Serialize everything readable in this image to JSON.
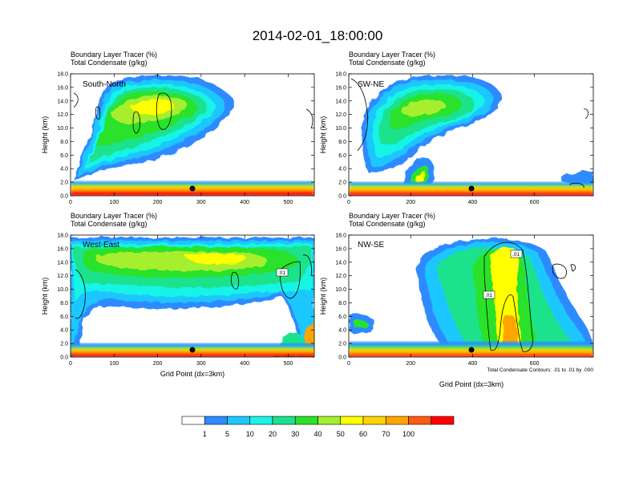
{
  "figure": {
    "title": "2014-02-01_18:00:00",
    "contour_note": "Total Condensate Contours: .01 to .01 by .000",
    "contour_label": ".01"
  },
  "colorbar": {
    "colors": [
      "#ffffff",
      "#2e8bff",
      "#1fc7ff",
      "#19f4e6",
      "#1de28c",
      "#2ae22a",
      "#a6ee2e",
      "#ffff00",
      "#ffd400",
      "#ffa500",
      "#ff5a14",
      "#ff0000"
    ],
    "labels": [
      "1",
      "5",
      "10",
      "20",
      "30",
      "40",
      "50",
      "60",
      "70",
      "100"
    ]
  },
  "chart_data": [
    {
      "type": "heatmap",
      "panel": "South-North",
      "title_lines": [
        "Boundary Layer Tracer   (%)",
        "Total Condensate   (g/kg)"
      ],
      "xlabel": "",
      "ylabel": "Height (km)",
      "xlim": [
        0,
        560
      ],
      "ylim": [
        0,
        18
      ],
      "xticks": [
        "0",
        "100",
        "200",
        "300",
        "400",
        "500"
      ],
      "yticks": [
        "0.0",
        "2.0",
        "4.0",
        "6.0",
        "8.0",
        "10.0",
        "12.0",
        "14.0",
        "16.0",
        "18.0"
      ],
      "marker": {
        "x": 280,
        "y": 1.1
      }
    },
    {
      "type": "heatmap",
      "panel": "SW-NE",
      "title_lines": [
        "Boundary Layer Tracer   (%)",
        "Total Condensate   (g/kg)"
      ],
      "xlabel": "",
      "ylabel": "Height (km)",
      "xlim": [
        0,
        790
      ],
      "ylim": [
        0,
        18
      ],
      "xticks": [
        "0",
        "200",
        "400",
        "600"
      ],
      "yticks": [
        "0.0",
        "2.0",
        "4.0",
        "6.0",
        "8.0",
        "10.0",
        "12.0",
        "14.0",
        "16.0",
        "18.0"
      ],
      "marker": {
        "x": 395,
        "y": 1.1
      }
    },
    {
      "type": "heatmap",
      "panel": "West-East",
      "title_lines": [
        "Boundary Layer Tracer   (%)",
        "Total Condensate   (g/kg)"
      ],
      "xlabel": "Grid Point (dx=3km)",
      "ylabel": "Height (km)",
      "xlim": [
        0,
        560
      ],
      "ylim": [
        0,
        18
      ],
      "xticks": [
        "0",
        "100",
        "200",
        "300",
        "400",
        "500"
      ],
      "yticks": [
        "0.0",
        "2.0",
        "4.0",
        "6.0",
        "8.0",
        "10.0",
        "12.0",
        "14.0",
        "16.0",
        "18.0"
      ],
      "marker": {
        "x": 280,
        "y": 1.1
      }
    },
    {
      "type": "heatmap",
      "panel": "NW-SE",
      "title_lines": [
        "Boundary Layer Tracer   (%)",
        "Total Condensate   (g/kg)"
      ],
      "xlabel": "Grid Point (dx=3km)",
      "ylabel": "Height (km)",
      "xlim": [
        0,
        790
      ],
      "ylim": [
        0,
        18
      ],
      "xticks": [
        "0",
        "200",
        "400",
        "600"
      ],
      "yticks": [
        "0.0",
        "2.0",
        "4.0",
        "6.0",
        "8.0",
        "10.0",
        "12.0",
        "14.0",
        "16.0",
        "18.0"
      ],
      "marker": {
        "x": 395,
        "y": 1.1
      }
    }
  ]
}
